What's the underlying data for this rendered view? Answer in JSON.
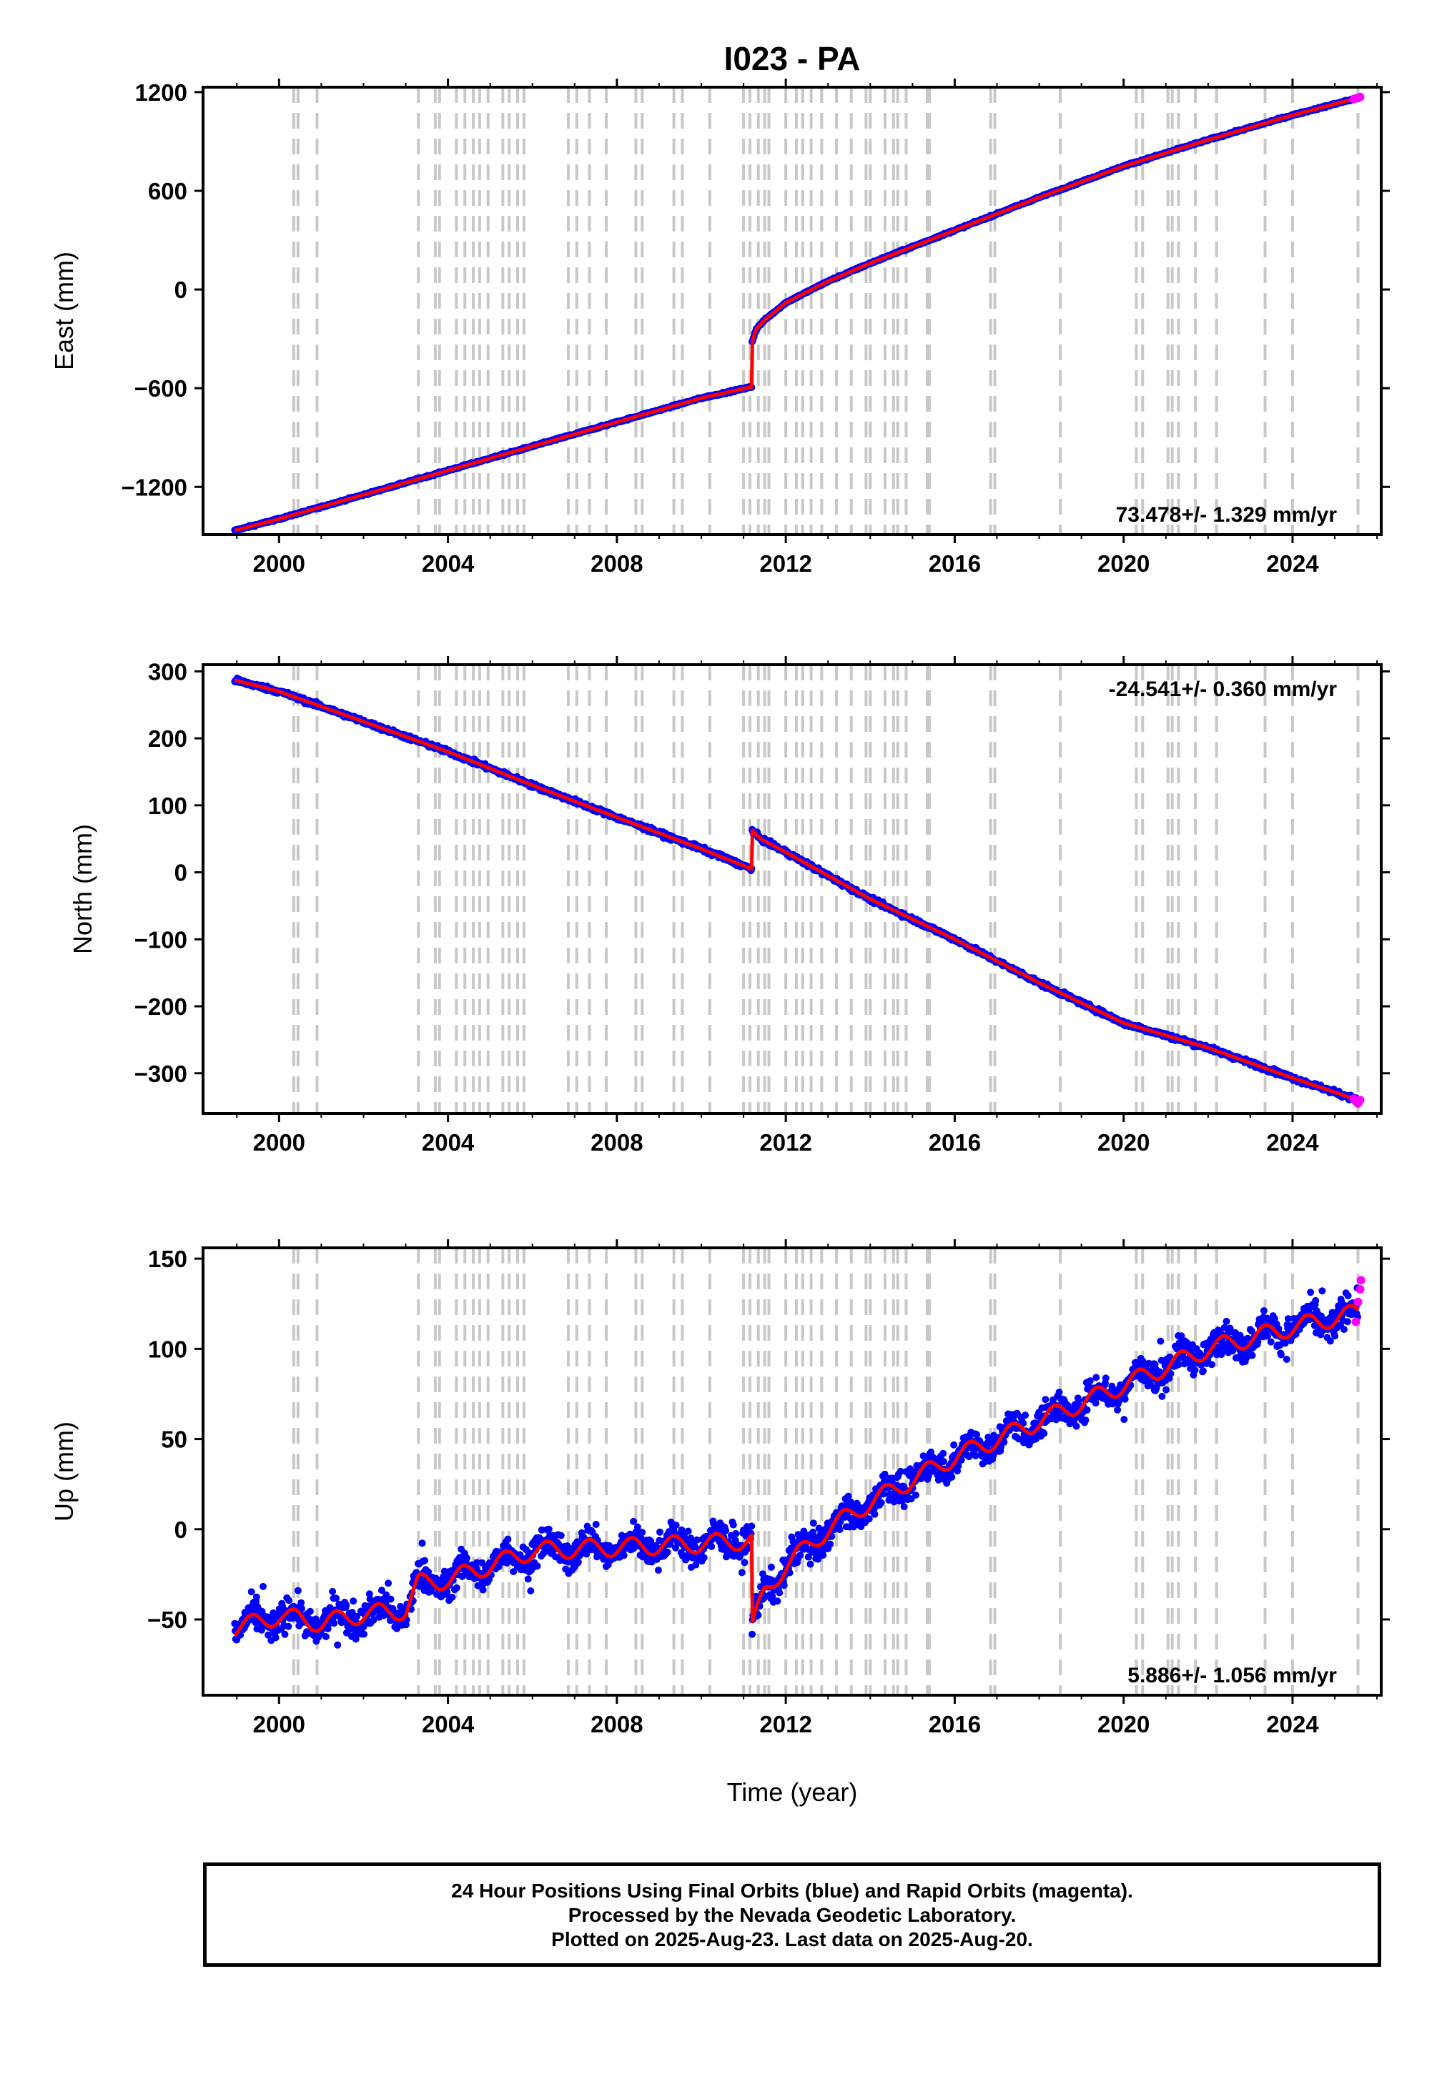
{
  "figure": {
    "title": "I023 - PA",
    "footer": [
      "24 Hour Positions Using Final Orbits (blue) and Rapid Orbits (magenta).",
      "Processed by the Nevada Geodetic Laboratory.",
      "Plotted on 2025-Aug-23. Last data on 2025-Aug-20."
    ],
    "x_axis_label": "Time (year)"
  },
  "colors": {
    "final_orbits": "#0000ff",
    "rapid_orbits": "#ff00ff",
    "model_fit": "#ff0000",
    "equipment_lines": "#c8c8c8",
    "frame": "#000000"
  },
  "chart_data": [
    {
      "type": "scatter",
      "panel": "east",
      "ylabel": "East (mm)",
      "xlim": [
        1998.2,
        2026.1
      ],
      "ylim": [
        -1490,
        1230
      ],
      "x_ticks": [
        2000,
        2004,
        2008,
        2012,
        2016,
        2020,
        2024
      ],
      "y_ticks": [
        -1200,
        -600,
        0,
        600,
        1200
      ],
      "y_tick_labels": [
        "−1200",
        "−600",
        "0",
        "600",
        "1200"
      ],
      "rate_label": "73.478+/- 1.329 mm/yr",
      "rate_position": "bottom-right",
      "series": [
        {
          "name": "final orbits",
          "color": "#0000ff",
          "x": [
            1998.95,
            2000,
            2002,
            2004,
            2006,
            2008,
            2010,
            2011.19,
            2011.2,
            2011.3,
            2011.5,
            2012,
            2013,
            2014,
            2016,
            2018,
            2020,
            2022,
            2024,
            2025.55
          ],
          "y": [
            -1465,
            -1395,
            -1248,
            -1100,
            -953,
            -806,
            -660,
            -592,
            -320,
            -240,
            -185,
            -80,
            50,
            160,
            360,
            560,
            750,
            910,
            1060,
            1165
          ]
        },
        {
          "name": "rapid orbits",
          "color": "#ff00ff",
          "x": [
            2025.45,
            2025.5,
            2025.55,
            2025.6
          ],
          "y": [
            1158,
            1162,
            1165,
            1170
          ]
        }
      ]
    },
    {
      "type": "scatter",
      "panel": "north",
      "ylabel": "North (mm)",
      "xlim": [
        1998.2,
        2026.1
      ],
      "ylim": [
        -360,
        310
      ],
      "x_ticks": [
        2000,
        2004,
        2008,
        2012,
        2016,
        2020,
        2024
      ],
      "y_ticks": [
        -300,
        -200,
        -100,
        0,
        100,
        200,
        300
      ],
      "y_tick_labels": [
        "−300",
        "−200",
        "−100",
        "0",
        "100",
        "200",
        "300"
      ],
      "rate_label": "-24.541+/- 0.360 mm/yr",
      "rate_position": "top-right",
      "series": [
        {
          "name": "final orbits",
          "color": "#0000ff",
          "x": [
            1998.95,
            2000,
            2002,
            2004,
            2006,
            2008,
            2010,
            2011.19,
            2011.2,
            2011.4,
            2012,
            2014,
            2016,
            2018,
            2020,
            2022,
            2024,
            2025.55
          ],
          "y": [
            287,
            270,
            225,
            180,
            130,
            82,
            35,
            5,
            63,
            50,
            30,
            -40,
            -100,
            -165,
            -225,
            -262,
            -307,
            -340
          ]
        },
        {
          "name": "rapid orbits",
          "color": "#ff00ff",
          "x": [
            2025.45,
            2025.5,
            2025.55,
            2025.6
          ],
          "y": [
            -338,
            -342,
            -345,
            -340
          ]
        }
      ]
    },
    {
      "type": "scatter",
      "panel": "up",
      "ylabel": "Up (mm)",
      "xlim": [
        1998.2,
        2026.1
      ],
      "ylim": [
        -92,
        156
      ],
      "x_ticks": [
        2000,
        2004,
        2008,
        2012,
        2016,
        2020,
        2024
      ],
      "y_ticks": [
        -50,
        0,
        50,
        100,
        150
      ],
      "y_tick_labels": [
        "−50",
        "0",
        "50",
        "100",
        "150"
      ],
      "rate_label": "5.886+/- 1.056 mm/yr",
      "rate_position": "bottom-right",
      "series": [
        {
          "name": "final orbits",
          "color": "#0000ff",
          "x": [
            1998.95,
            2000,
            2001,
            2002,
            2003,
            2003.3,
            2004,
            2005,
            2006,
            2008,
            2010,
            2011.19,
            2011.2,
            2011.5,
            2012,
            2013,
            2014,
            2016,
            2018,
            2020,
            2022,
            2024,
            2025.55
          ],
          "y": [
            -55,
            -48,
            -52,
            -47,
            -45,
            -30,
            -28,
            -20,
            -12,
            -10,
            -8,
            -6,
            -55,
            -35,
            -20,
            0,
            15,
            40,
            60,
            80,
            100,
            112,
            120
          ]
        },
        {
          "name": "rapid orbits",
          "color": "#ff00ff",
          "x": [
            2025.5,
            2025.55,
            2025.6,
            2025.62
          ],
          "y": [
            115,
            126,
            133,
            138
          ]
        }
      ]
    }
  ],
  "equipment_change_years": [
    2000.35,
    2000.45,
    2000.9,
    2003.3,
    2003.7,
    2003.8,
    2004.2,
    2004.4,
    2004.6,
    2004.75,
    2004.95,
    2005.3,
    2005.45,
    2005.65,
    2005.8,
    2006.85,
    2007.05,
    2007.35,
    2007.75,
    2008.45,
    2008.6,
    2009.35,
    2009.55,
    2010.2,
    2011.0,
    2011.15,
    2011.35,
    2011.5,
    2011.6,
    2012.0,
    2012.25,
    2012.4,
    2012.6,
    2012.85,
    2013.2,
    2013.55,
    2013.9,
    2014.0,
    2014.35,
    2014.55,
    2014.65,
    2014.85,
    2015.35,
    2015.4,
    2016.85,
    2016.95,
    2018.5,
    2020.3,
    2020.45,
    2021.05,
    2021.15,
    2021.3,
    2021.7,
    2022.2,
    2023.35,
    2024.0,
    2025.55
  ]
}
